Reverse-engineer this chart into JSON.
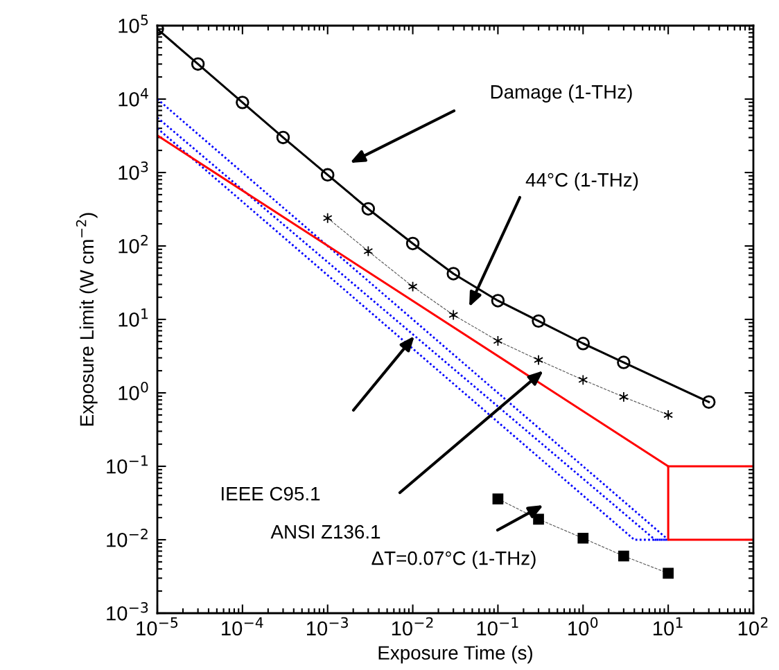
{
  "chart_data": {
    "type": "line",
    "xlabel": "Exposure Time (s)",
    "ylabel": "Exposure Limit (W cm$^{−2}$)",
    "log": "xy",
    "grid": false,
    "legend": false,
    "xlim": [
      1e-05,
      100
    ],
    "ylim": [
      0.001,
      100000
    ],
    "xticks": [
      {
        "value": 1e-05,
        "label": "10$^{−5}$"
      },
      {
        "value": 0.0001,
        "label": "10$^{−4}$"
      },
      {
        "value": 0.001,
        "label": "10$^{−3}$"
      },
      {
        "value": 0.01,
        "label": "10$^{−2}$"
      },
      {
        "value": 0.1,
        "label": "10$^{−1}$"
      },
      {
        "value": 1,
        "label": "10$^{0}$"
      },
      {
        "value": 10,
        "label": "10$^{1}$"
      },
      {
        "value": 100,
        "label": "10$^{2}$"
      }
    ],
    "yticks": [
      {
        "value": 0.001,
        "label": "10$^{−3}$"
      },
      {
        "value": 0.01,
        "label": "10$^{−2}$"
      },
      {
        "value": 0.1,
        "label": "10$^{−1}$"
      },
      {
        "value": 1,
        "label": "10$^{0}$"
      },
      {
        "value": 10,
        "label": "10$^{1}$"
      },
      {
        "value": 100,
        "label": "10$^{2}$"
      },
      {
        "value": 1000,
        "label": "10$^{3}$"
      },
      {
        "value": 10000,
        "label": "10$^{4}$"
      },
      {
        "value": 100000,
        "label": "10$^{5}$"
      }
    ],
    "series": [
      {
        "color": "#0000ff",
        "line_style": "dotted",
        "marker": "none",
        "x": [
          1e-05,
          10
        ],
        "values": [
          10000,
          0.01
        ]
      },
      {
        "color": "#0000ff",
        "line_style": "dotted",
        "marker": "none",
        "x": [
          1e-05,
          7,
          10
        ],
        "values": [
          5600,
          0.01,
          0.01
        ]
      },
      {
        "color": "#0000ff",
        "line_style": "dotted",
        "marker": "none",
        "x": [
          1e-05,
          4,
          10
        ],
        "values": [
          4000,
          0.01,
          0.01
        ]
      },
      {
        "color": "#ff0000",
        "line_style": "solid",
        "marker": "none",
        "x": [
          1e-05,
          10,
          10,
          100
        ],
        "values": [
          3200,
          0.1,
          0.01,
          0.01
        ]
      },
      {
        "color": "#ff0000",
        "line_style": "solid",
        "marker": "none",
        "x": [
          10,
          100
        ],
        "values": [
          0.1,
          0.1
        ]
      },
      {
        "color": "#000000",
        "line_style": "solid",
        "marker": "circle",
        "x": [
          1e-05,
          3e-05,
          0.0001,
          0.0003,
          0.001,
          0.003,
          0.01,
          0.03,
          0.1,
          0.3,
          1,
          3,
          30
        ],
        "values": [
          90000,
          30000,
          9000,
          3000,
          930,
          320,
          108,
          42,
          18,
          9.5,
          4.7,
          2.6,
          0.75
        ]
      },
      {
        "color": "#000000",
        "line_style": "dashed",
        "marker": "cross",
        "x": [
          0.001,
          0.003,
          0.01,
          0.03,
          0.1,
          0.3,
          1,
          3,
          10
        ],
        "values": [
          240,
          85,
          28,
          11.5,
          5.1,
          2.8,
          1.5,
          0.88,
          0.5
        ]
      },
      {
        "color": "#000000",
        "line_style": "dashed",
        "marker": "square",
        "x": [
          0.1,
          0.3,
          1,
          3,
          10
        ],
        "values": [
          0.036,
          0.019,
          0.0105,
          0.006,
          0.0035
        ]
      }
    ],
    "annotations": [
      "Damage (1-THz)",
      "44°C (1-THz)",
      "IEEE C95.1",
      "ANSI Z136.1",
      "ΔT=0.07°C (1-THz)"
    ]
  }
}
